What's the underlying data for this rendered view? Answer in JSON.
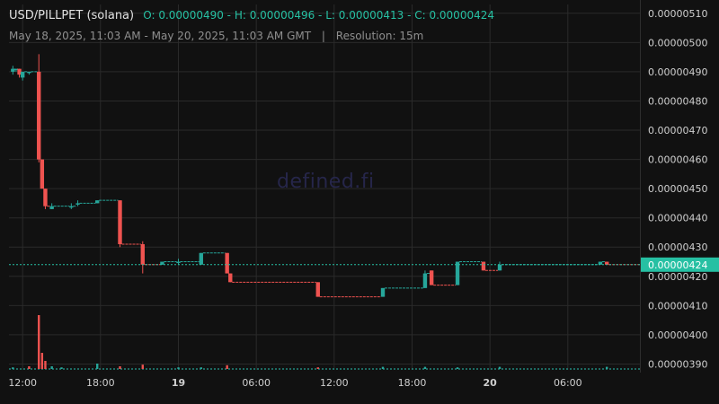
{
  "header": {
    "symbol": "USD/PILLPET (solana)",
    "ohlc": "O: 0.00000490 - H: 0.00000496 - L: 0.00000413 - C: 0.00000424",
    "range": "May 18, 2025, 11:03 AM - May 20, 2025, 11:03 AM GMT",
    "separator": "|",
    "resolution": "Resolution: 15m"
  },
  "watermark": "defined.fi",
  "colors": {
    "background": "#111111",
    "grid": "#2a2a2a",
    "up": "#26a69a",
    "down": "#ef5350",
    "price_line": "#26c0a3",
    "label_text": "#cfcfcf"
  },
  "chart_data": {
    "type": "candlestick",
    "title": "USD/PILLPET (solana)",
    "resolution": "15m",
    "y_ticks": [
      "0.00000510",
      "0.00000500",
      "0.00000490",
      "0.00000480",
      "0.00000470",
      "0.00000460",
      "0.00000450",
      "0.00000440",
      "0.00000430",
      "0.00000420",
      "0.00000410",
      "0.00000400",
      "0.00000390"
    ],
    "ylim": [
      3.88e-06,
      5.13e-06
    ],
    "x_ticks": [
      {
        "label": "12:00",
        "t": 0
      },
      {
        "label": "18:00",
        "t": 6
      },
      {
        "label": "19",
        "t": 12,
        "bold": true
      },
      {
        "label": "06:00",
        "t": 18
      },
      {
        "label": "12:00",
        "t": 24
      },
      {
        "label": "18:00",
        "t": 30
      },
      {
        "label": "20",
        "t": 36,
        "bold": true
      },
      {
        "label": "06:00",
        "t": 42
      }
    ],
    "x_unit": "hours since May 18 12:00",
    "xlim": [
      -1.05,
      47.55
    ],
    "current_price": "0.00000424",
    "candles": [
      {
        "t": -0.75,
        "o": 4.9e-06,
        "h": 4.92e-06,
        "l": 4.89e-06,
        "c": 4.91e-06
      },
      {
        "t": -0.5,
        "o": 4.91e-06,
        "h": 4.91e-06,
        "l": 4.9e-06,
        "c": 4.91e-06
      },
      {
        "t": -0.25,
        "o": 4.91e-06,
        "h": 4.91e-06,
        "l": 4.88e-06,
        "c": 4.89e-06
      },
      {
        "t": 0.0,
        "o": 4.88e-06,
        "h": 4.9e-06,
        "l": 4.87e-06,
        "c": 4.9e-06
      },
      {
        "t": 0.5,
        "o": 4.9e-06,
        "h": 4.9e-06,
        "l": 4.89e-06,
        "c": 4.9e-06
      },
      {
        "t": 1.25,
        "o": 4.9e-06,
        "h": 4.96e-06,
        "l": 4.59e-06,
        "c": 4.6e-06
      },
      {
        "t": 1.5,
        "o": 4.6e-06,
        "h": 4.6e-06,
        "l": 4.5e-06,
        "c": 4.5e-06
      },
      {
        "t": 1.75,
        "o": 4.5e-06,
        "h": 4.5e-06,
        "l": 4.43e-06,
        "c": 4.44e-06
      },
      {
        "t": 2.25,
        "o": 4.43e-06,
        "h": 4.45e-06,
        "l": 4.43e-06,
        "c": 4.44e-06
      },
      {
        "t": 3.75,
        "o": 4.44e-06,
        "h": 4.45e-06,
        "l": 4.43e-06,
        "c": 4.44e-06
      },
      {
        "t": 4.25,
        "o": 4.45e-06,
        "h": 4.46e-06,
        "l": 4.44e-06,
        "c": 4.45e-06
      },
      {
        "t": 5.75,
        "o": 4.45e-06,
        "h": 4.46e-06,
        "l": 4.45e-06,
        "c": 4.46e-06
      },
      {
        "t": 7.5,
        "o": 4.46e-06,
        "h": 4.46e-06,
        "l": 4.3e-06,
        "c": 4.31e-06
      },
      {
        "t": 9.25,
        "o": 4.31e-06,
        "h": 4.32e-06,
        "l": 4.21e-06,
        "c": 4.24e-06
      },
      {
        "t": 10.75,
        "o": 4.24e-06,
        "h": 4.25e-06,
        "l": 4.24e-06,
        "c": 4.25e-06
      },
      {
        "t": 12.0,
        "o": 4.25e-06,
        "h": 4.26e-06,
        "l": 4.24e-06,
        "c": 4.25e-06
      },
      {
        "t": 13.75,
        "o": 4.24e-06,
        "h": 4.28e-06,
        "l": 4.24e-06,
        "c": 4.28e-06
      },
      {
        "t": 15.75,
        "o": 4.28e-06,
        "h": 4.28e-06,
        "l": 4.21e-06,
        "c": 4.21e-06
      },
      {
        "t": 16.0,
        "o": 4.21e-06,
        "h": 4.21e-06,
        "l": 4.18e-06,
        "c": 4.18e-06
      },
      {
        "t": 22.75,
        "o": 4.18e-06,
        "h": 4.18e-06,
        "l": 4.13e-06,
        "c": 4.13e-06
      },
      {
        "t": 27.75,
        "o": 4.13e-06,
        "h": 4.16e-06,
        "l": 4.13e-06,
        "c": 4.16e-06
      },
      {
        "t": 31.0,
        "o": 4.16e-06,
        "h": 4.22e-06,
        "l": 4.16e-06,
        "c": 4.21e-06
      },
      {
        "t": 31.5,
        "o": 4.22e-06,
        "h": 4.22e-06,
        "l": 4.17e-06,
        "c": 4.17e-06
      },
      {
        "t": 33.5,
        "o": 4.17e-06,
        "h": 4.25e-06,
        "l": 4.17e-06,
        "c": 4.25e-06
      },
      {
        "t": 35.5,
        "o": 4.25e-06,
        "h": 4.25e-06,
        "l": 4.22e-06,
        "c": 4.22e-06
      },
      {
        "t": 36.75,
        "o": 4.22e-06,
        "h": 4.25e-06,
        "l": 4.22e-06,
        "c": 4.24e-06
      },
      {
        "t": 44.5,
        "o": 4.24e-06,
        "h": 4.25e-06,
        "l": 4.24e-06,
        "c": 4.25e-06
      },
      {
        "t": 45.0,
        "o": 4.25e-06,
        "h": 4.25e-06,
        "l": 4.24e-06,
        "c": 4.24e-06
      }
    ],
    "volume_note": "relative volume (max = 1.0)",
    "volumes": [
      {
        "t": -0.75,
        "v": 0.03,
        "up": true
      },
      {
        "t": 0.5,
        "v": 0.05,
        "up": false
      },
      {
        "t": 1.25,
        "v": 1.0,
        "up": false
      },
      {
        "t": 1.5,
        "v": 0.3,
        "up": false
      },
      {
        "t": 1.75,
        "v": 0.15,
        "up": false
      },
      {
        "t": 2.25,
        "v": 0.05,
        "up": true
      },
      {
        "t": 3.0,
        "v": 0.03,
        "up": true
      },
      {
        "t": 5.75,
        "v": 0.1,
        "up": true
      },
      {
        "t": 7.5,
        "v": 0.05,
        "up": false
      },
      {
        "t": 9.25,
        "v": 0.08,
        "up": false
      },
      {
        "t": 12.0,
        "v": 0.03,
        "up": true
      },
      {
        "t": 13.75,
        "v": 0.03,
        "up": true
      },
      {
        "t": 15.75,
        "v": 0.07,
        "up": false
      },
      {
        "t": 22.75,
        "v": 0.03,
        "up": false
      },
      {
        "t": 27.75,
        "v": 0.04,
        "up": true
      },
      {
        "t": 31.0,
        "v": 0.04,
        "up": true
      },
      {
        "t": 33.5,
        "v": 0.03,
        "up": true
      },
      {
        "t": 36.75,
        "v": 0.04,
        "up": true
      },
      {
        "t": 45.0,
        "v": 0.04,
        "up": true
      }
    ]
  }
}
